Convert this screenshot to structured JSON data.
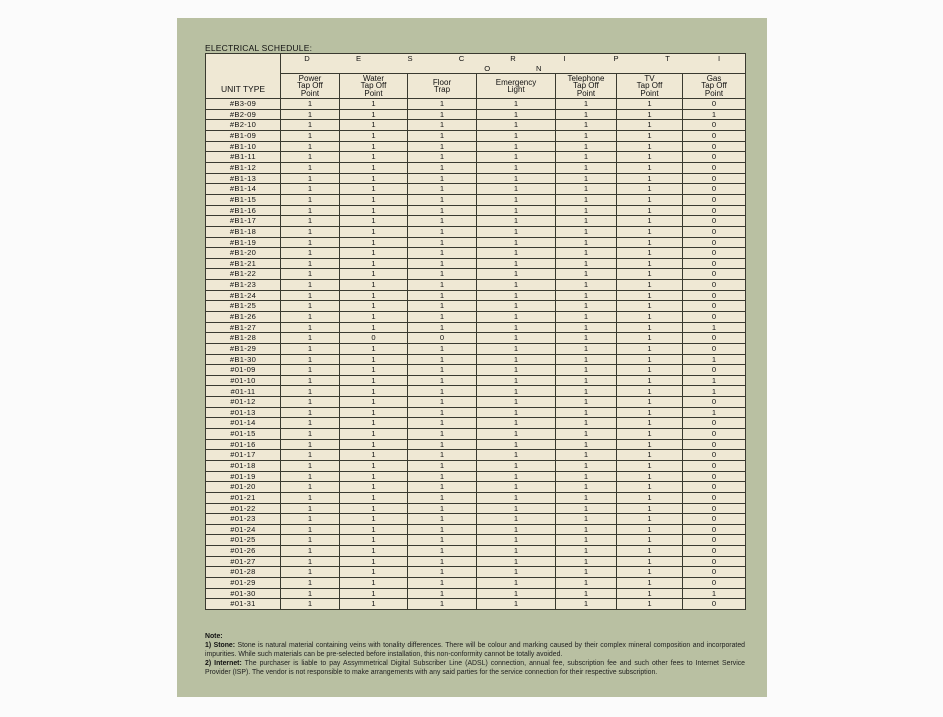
{
  "title": "ELECTRICAL SCHEDULE:",
  "table": {
    "group_header_letters": [
      "D",
      "E",
      "S",
      "C",
      "R",
      "I",
      "P",
      "T",
      "I",
      "O",
      "N"
    ],
    "unit_header": "UNIT TYPE",
    "columns": [
      [
        "Power",
        "Tap Off",
        "Point"
      ],
      [
        "Water",
        "Tap Off",
        "Point"
      ],
      [
        "Floor",
        "Trap"
      ],
      [
        "Emergency",
        "Light"
      ],
      [
        "Telephone",
        "Tap Off",
        "Point"
      ],
      [
        "TV",
        "Tap Off",
        "Point"
      ],
      [
        "Gas",
        "Tap Off",
        "Point"
      ]
    ],
    "rows": [
      [
        "#B3-09",
        1,
        1,
        1,
        1,
        1,
        1,
        0
      ],
      [
        "#B2-09",
        1,
        1,
        1,
        1,
        1,
        1,
        1
      ],
      [
        "#B2-10",
        1,
        1,
        1,
        1,
        1,
        1,
        0
      ],
      [
        "#B1-09",
        1,
        1,
        1,
        1,
        1,
        1,
        0
      ],
      [
        "#B1-10",
        1,
        1,
        1,
        1,
        1,
        1,
        0
      ],
      [
        "#B1-11",
        1,
        1,
        1,
        1,
        1,
        1,
        0
      ],
      [
        "#B1-12",
        1,
        1,
        1,
        1,
        1,
        1,
        0
      ],
      [
        "#B1-13",
        1,
        1,
        1,
        1,
        1,
        1,
        0
      ],
      [
        "#B1-14",
        1,
        1,
        1,
        1,
        1,
        1,
        0
      ],
      [
        "#B1-15",
        1,
        1,
        1,
        1,
        1,
        1,
        0
      ],
      [
        "#B1-16",
        1,
        1,
        1,
        1,
        1,
        1,
        0
      ],
      [
        "#B1-17",
        1,
        1,
        1,
        1,
        1,
        1,
        0
      ],
      [
        "#B1-18",
        1,
        1,
        1,
        1,
        1,
        1,
        0
      ],
      [
        "#B1-19",
        1,
        1,
        1,
        1,
        1,
        1,
        0
      ],
      [
        "#B1-20",
        1,
        1,
        1,
        1,
        1,
        1,
        0
      ],
      [
        "#B1-21",
        1,
        1,
        1,
        1,
        1,
        1,
        0
      ],
      [
        "#B1-22",
        1,
        1,
        1,
        1,
        1,
        1,
        0
      ],
      [
        "#B1-23",
        1,
        1,
        1,
        1,
        1,
        1,
        0
      ],
      [
        "#B1-24",
        1,
        1,
        1,
        1,
        1,
        1,
        0
      ],
      [
        "#B1-25",
        1,
        1,
        1,
        1,
        1,
        1,
        0
      ],
      [
        "#B1-26",
        1,
        1,
        1,
        1,
        1,
        1,
        0
      ],
      [
        "#B1-27",
        1,
        1,
        1,
        1,
        1,
        1,
        1
      ],
      [
        "#B1-28",
        1,
        0,
        0,
        1,
        1,
        1,
        0
      ],
      [
        "#B1-29",
        1,
        1,
        1,
        1,
        1,
        1,
        0
      ],
      [
        "#B1-30",
        1,
        1,
        1,
        1,
        1,
        1,
        1
      ],
      [
        "#01-09",
        1,
        1,
        1,
        1,
        1,
        1,
        0
      ],
      [
        "#01-10",
        1,
        1,
        1,
        1,
        1,
        1,
        1
      ],
      [
        "#01-11",
        1,
        1,
        1,
        1,
        1,
        1,
        1
      ],
      [
        "#01-12",
        1,
        1,
        1,
        1,
        1,
        1,
        0
      ],
      [
        "#01-13",
        1,
        1,
        1,
        1,
        1,
        1,
        1
      ],
      [
        "#01-14",
        1,
        1,
        1,
        1,
        1,
        1,
        0
      ],
      [
        "#01-15",
        1,
        1,
        1,
        1,
        1,
        1,
        0
      ],
      [
        "#01-16",
        1,
        1,
        1,
        1,
        1,
        1,
        0
      ],
      [
        "#01-17",
        1,
        1,
        1,
        1,
        1,
        1,
        0
      ],
      [
        "#01-18",
        1,
        1,
        1,
        1,
        1,
        1,
        0
      ],
      [
        "#01-19",
        1,
        1,
        1,
        1,
        1,
        1,
        0
      ],
      [
        "#01-20",
        1,
        1,
        1,
        1,
        1,
        1,
        0
      ],
      [
        "#01-21",
        1,
        1,
        1,
        1,
        1,
        1,
        0
      ],
      [
        "#01-22",
        1,
        1,
        1,
        1,
        1,
        1,
        0
      ],
      [
        "#01-23",
        1,
        1,
        1,
        1,
        1,
        1,
        0
      ],
      [
        "#01-24",
        1,
        1,
        1,
        1,
        1,
        1,
        0
      ],
      [
        "#01-25",
        1,
        1,
        1,
        1,
        1,
        1,
        0
      ],
      [
        "#01-26",
        1,
        1,
        1,
        1,
        1,
        1,
        0
      ],
      [
        "#01-27",
        1,
        1,
        1,
        1,
        1,
        1,
        0
      ],
      [
        "#01-28",
        1,
        1,
        1,
        1,
        1,
        1,
        0
      ],
      [
        "#01-29",
        1,
        1,
        1,
        1,
        1,
        1,
        0
      ],
      [
        "#01-30",
        1,
        1,
        1,
        1,
        1,
        1,
        1
      ],
      [
        "#01-31",
        1,
        1,
        1,
        1,
        1,
        1,
        0
      ]
    ]
  },
  "note": {
    "heading": "Note:",
    "items": [
      {
        "label": "1) Stone:",
        "text": " Stone is natural material containing veins with tonality differences. There will be colour and marking caused by their complex mineral composition and incorporated impurities. While such materials can be pre-selected before installation, this non-conformity cannot be totally avoided."
      },
      {
        "label": "2) Internet:",
        "text": " The purchaser is liable to pay Assymmetrical Digital Subscriber Line (ADSL) connection, annual fee, subscription fee and such other fees to Internet Service Provider (ISP). The vendor is not responsible to make arrangements with any said parties for the service connection for their respective subscription."
      }
    ]
  }
}
